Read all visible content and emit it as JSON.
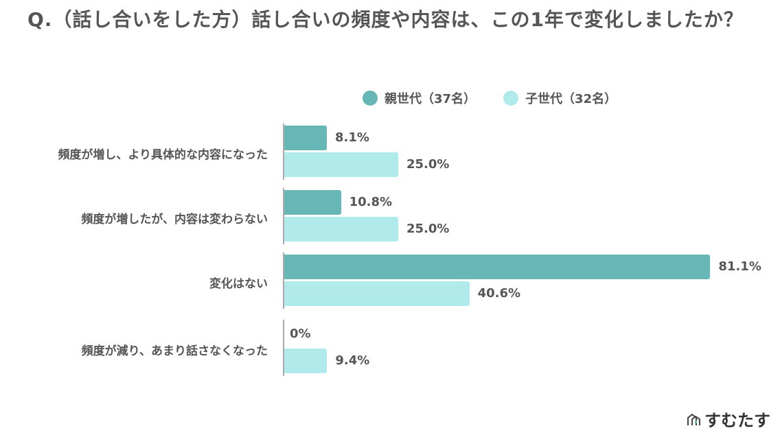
{
  "title": "Q.（話し合いをした方）話し合いの頻度や内容は、この1年で変化しましたか？",
  "logo": "すむたす",
  "chart_data": {
    "type": "bar",
    "orientation": "horizontal",
    "categories": [
      "頻度が増し、より具体的な内容になった",
      "頻度が増したが、内容は変わらない",
      "変化はない",
      "頻度が減り、あまり話さなくなった"
    ],
    "series": [
      {
        "name": "親世代（37名）",
        "color": "#66b7b6",
        "values": [
          8.1,
          10.8,
          81.1,
          0
        ],
        "labels": [
          "8.1%",
          "10.8%",
          "81.1%",
          "0%"
        ]
      },
      {
        "name": "子世代（32名）",
        "color": "#b0eaea",
        "values": [
          25.0,
          25.0,
          40.6,
          9.4
        ],
        "labels": [
          "25.0%",
          "25.0%",
          "40.6%",
          "9.4%"
        ]
      }
    ],
    "legend_position": "top",
    "grid": false
  }
}
